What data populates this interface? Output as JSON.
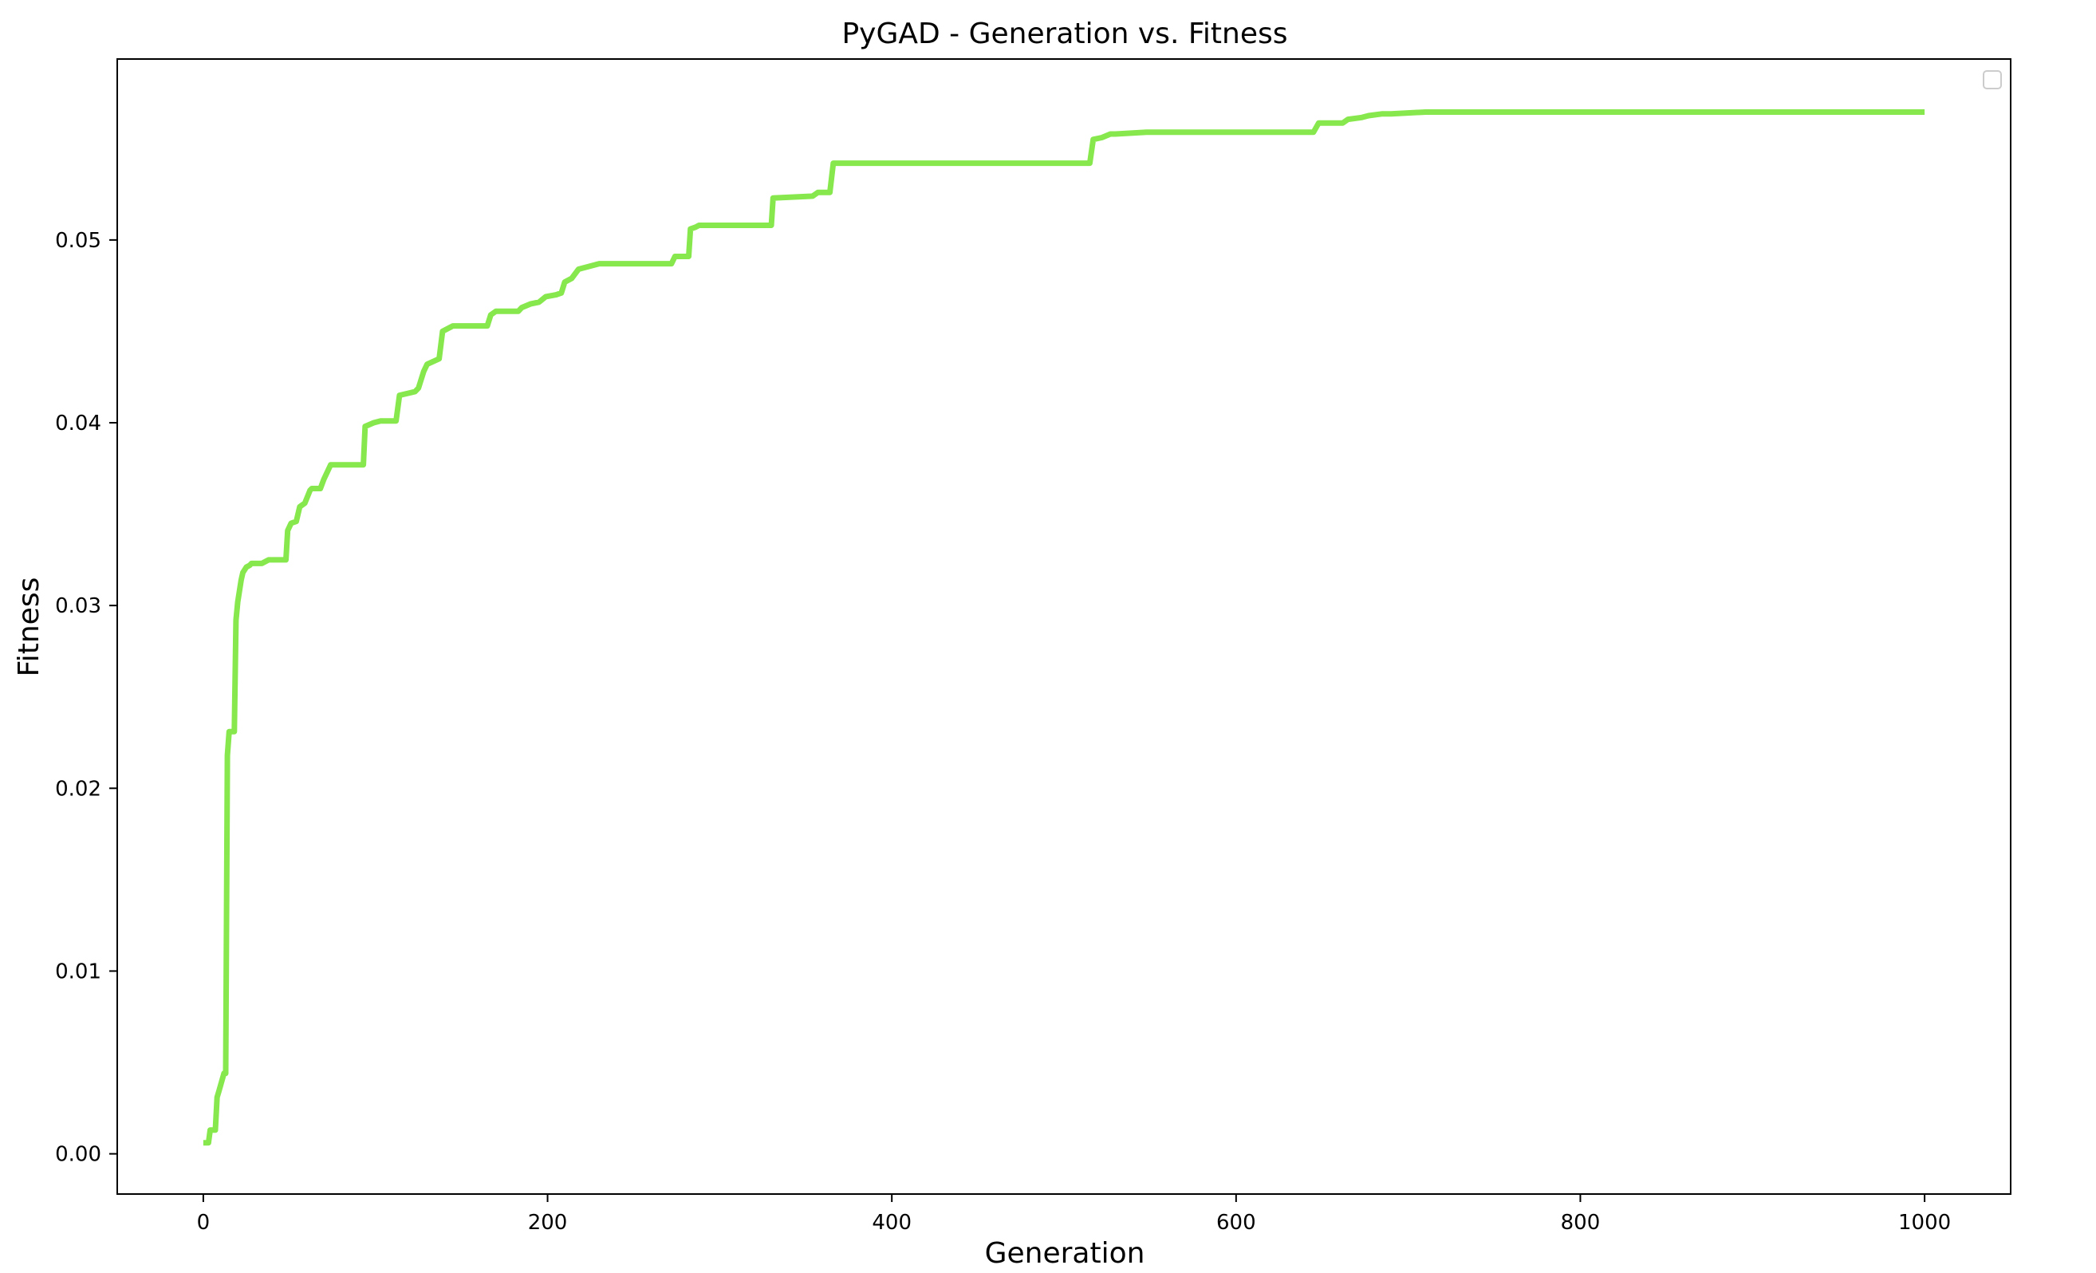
{
  "chart_data": {
    "type": "line",
    "title": "PyGAD - Generation vs. Fitness",
    "xlabel": "Generation",
    "ylabel": "Fitness",
    "xlim": [
      -50,
      1050
    ],
    "ylim": [
      -0.0022,
      0.0599
    ],
    "xticks": [
      0,
      200,
      400,
      600,
      800,
      1000
    ],
    "xtick_labels": [
      "0",
      "200",
      "400",
      "600",
      "800",
      "1000"
    ],
    "yticks": [
      0.0,
      0.01,
      0.02,
      0.03,
      0.04,
      0.05
    ],
    "ytick_labels": [
      "0.00",
      "0.01",
      "0.02",
      "0.03",
      "0.04",
      "0.05"
    ],
    "grid": false,
    "legend": {
      "placement": "upper right",
      "entries": []
    },
    "colors": {
      "line": "#87e84d",
      "axes": "#000000",
      "background": "#ffffff",
      "legend_border": "#cccccc"
    },
    "series": [
      {
        "x": [
          0,
          3,
          4,
          7,
          8,
          9,
          12,
          13,
          14,
          15,
          17,
          18,
          19,
          20,
          22,
          23,
          25,
          27,
          28,
          34,
          38,
          40,
          45,
          48,
          49,
          51,
          54,
          56,
          59,
          62,
          63,
          68,
          70,
          72,
          74,
          93,
          94,
          99,
          103,
          112,
          114,
          123,
          125,
          128,
          130,
          137,
          139,
          145,
          165,
          167,
          170,
          183,
          185,
          190,
          195,
          199,
          205,
          208,
          210,
          214,
          218,
          230,
          272,
          274,
          282,
          283,
          286,
          288,
          291,
          330,
          331,
          354,
          357,
          364,
          366,
          515,
          517,
          522,
          527,
          530,
          548,
          645,
          648,
          662,
          665,
          673,
          677,
          685,
          690,
          710,
          720,
          1000
        ],
        "y": [
          0.0006,
          0.0006,
          0.0013,
          0.0013,
          0.0031,
          0.0034,
          0.0044,
          0.0044,
          0.0218,
          0.0231,
          0.0231,
          0.0231,
          0.0292,
          0.0302,
          0.0314,
          0.0318,
          0.0321,
          0.0322,
          0.0323,
          0.0323,
          0.0325,
          0.0325,
          0.0325,
          0.0325,
          0.0341,
          0.0345,
          0.0346,
          0.0354,
          0.0356,
          0.0363,
          0.0364,
          0.0364,
          0.0369,
          0.0373,
          0.0377,
          0.0377,
          0.0398,
          0.04,
          0.0401,
          0.0401,
          0.0415,
          0.0417,
          0.0419,
          0.0428,
          0.0432,
          0.0435,
          0.045,
          0.0453,
          0.0453,
          0.0459,
          0.0461,
          0.0461,
          0.0463,
          0.0465,
          0.0466,
          0.0469,
          0.047,
          0.0471,
          0.0477,
          0.0479,
          0.0484,
          0.0487,
          0.0487,
          0.0491,
          0.0491,
          0.0506,
          0.0507,
          0.0508,
          0.0508,
          0.0508,
          0.0523,
          0.0524,
          0.0526,
          0.0526,
          0.0542,
          0.0542,
          0.0555,
          0.0556,
          0.0558,
          0.0558,
          0.0559,
          0.0559,
          0.0564,
          0.0564,
          0.0566,
          0.0567,
          0.0568,
          0.0569,
          0.0569,
          0.057,
          0.057,
          0.057
        ]
      }
    ]
  }
}
